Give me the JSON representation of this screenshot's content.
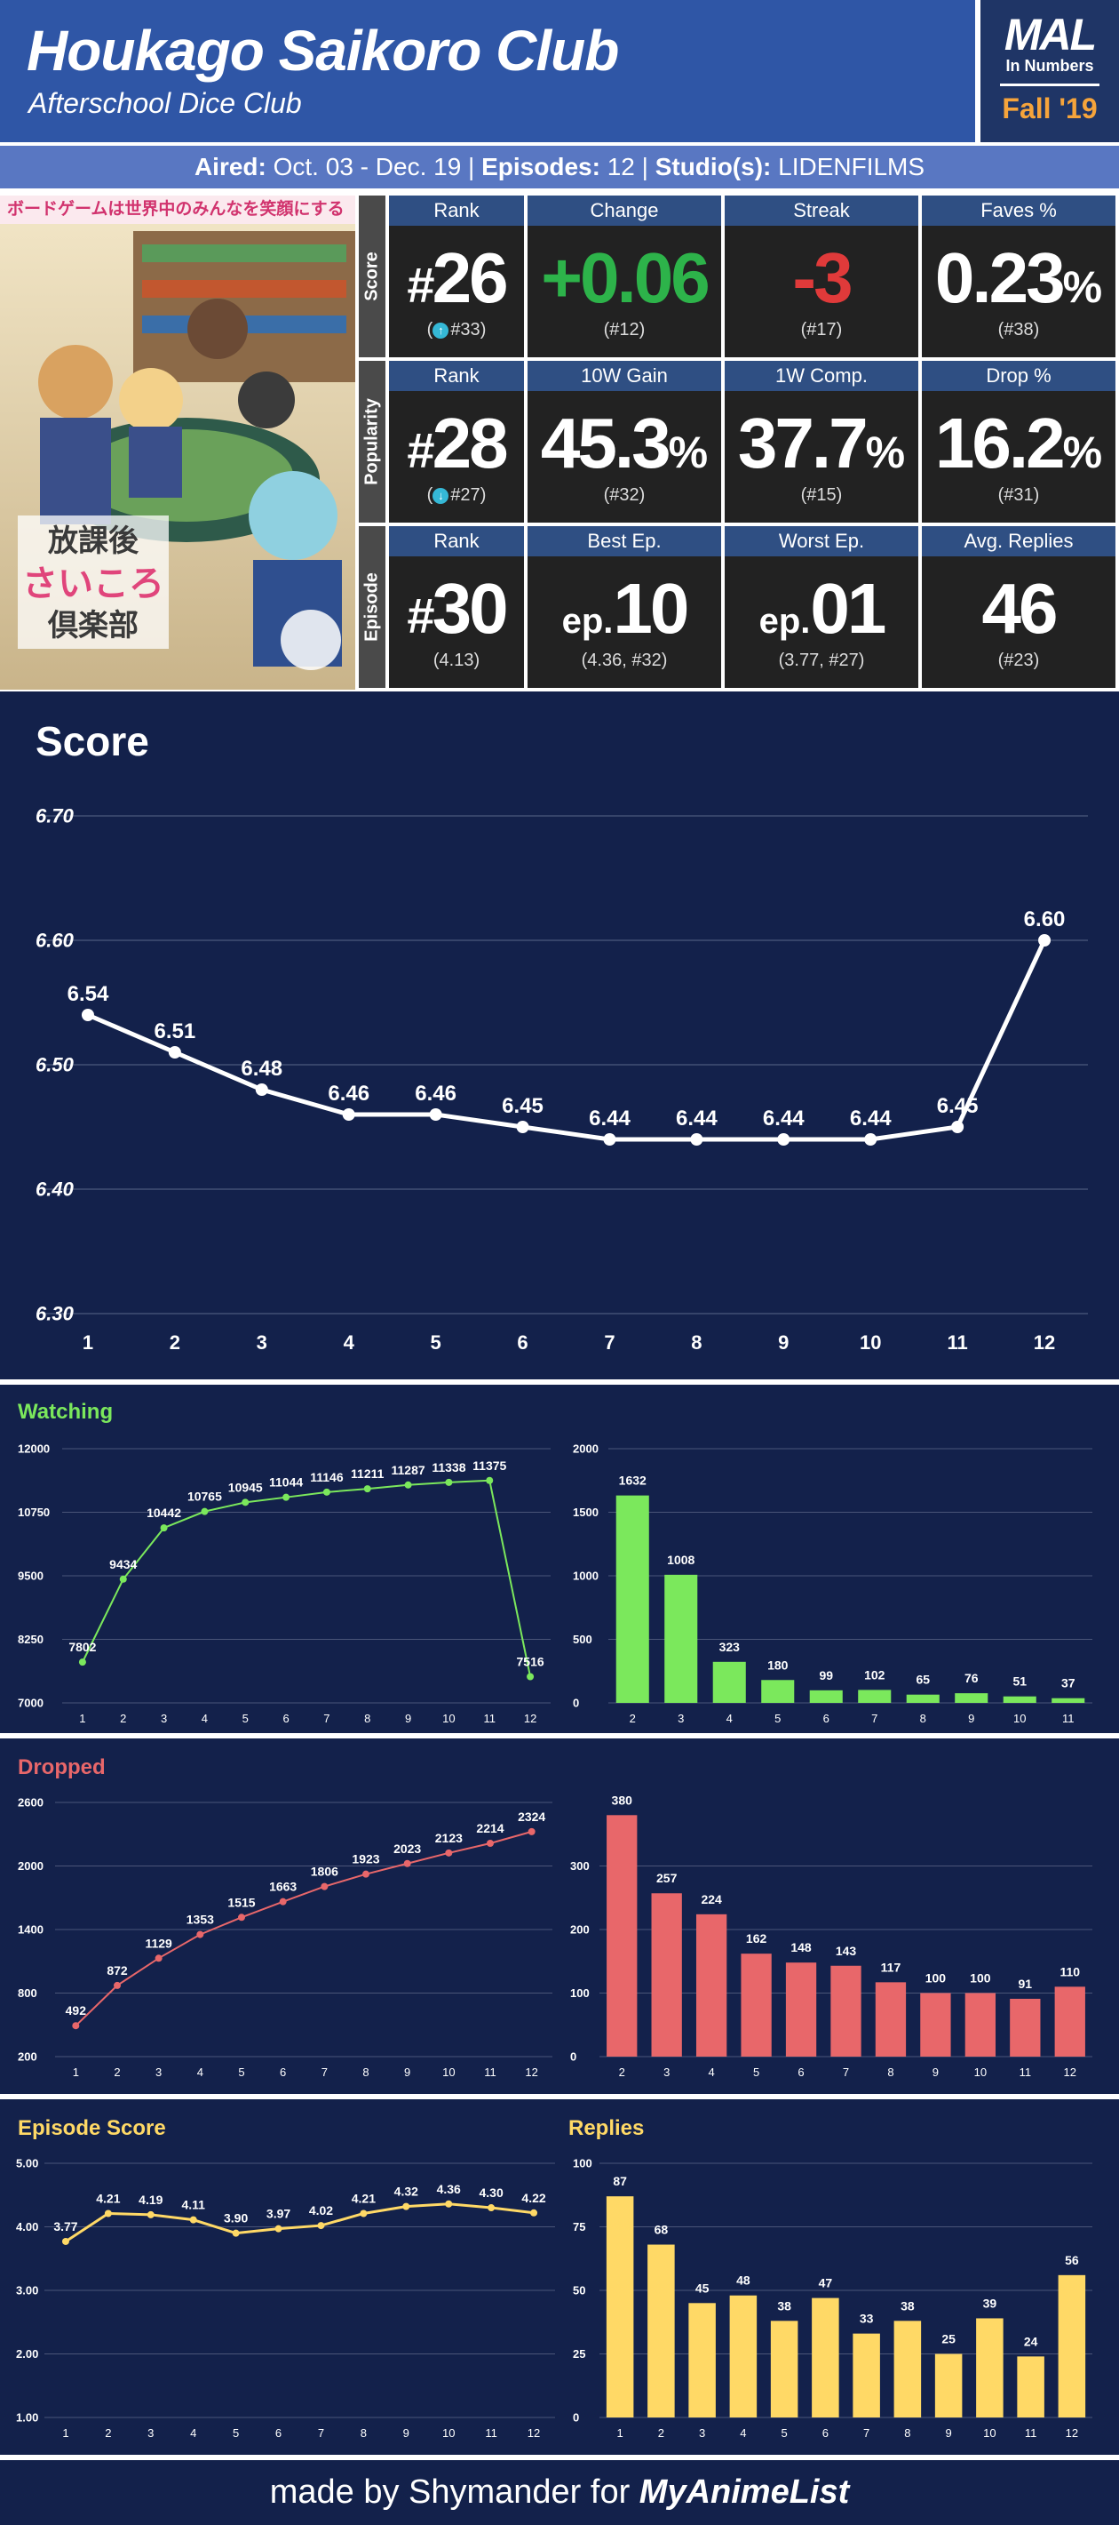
{
  "header": {
    "title": "Houkago Saikoro Club",
    "subtitle": "Afterschool Dice Club",
    "badge_title": "MAL",
    "badge_sub": "In Numbers",
    "badge_season": "Fall '19"
  },
  "info": {
    "aired_label": "Aired:",
    "aired_value": "Oct. 03 - Dec. 19",
    "episodes_label": "Episodes:",
    "episodes_value": "12",
    "studio_label": "Studio(s):",
    "studio_value": "LIDENFILMS",
    "sep": "|"
  },
  "poster": {
    "banner": "ボードゲームは世界中のみんなを笑顔にする"
  },
  "stats": {
    "score": {
      "label": "Score",
      "rank_head": "Rank",
      "rank_value": "26",
      "rank_sub": "#33",
      "change_head": "Change",
      "change_value": "+0.06",
      "change_sub": "(#12)",
      "streak_head": "Streak",
      "streak_value": "-3",
      "streak_sub": "(#17)",
      "faves_head": "Faves %",
      "faves_value": "0.23",
      "faves_sub": "(#38)"
    },
    "popularity": {
      "label": "Popularity",
      "rank_head": "Rank",
      "rank_value": "28",
      "rank_sub": "#27",
      "gain_head": "10W Gain",
      "gain_value": "45.3",
      "gain_sub": "(#32)",
      "comp_head": "1W Comp.",
      "comp_value": "37.7",
      "comp_sub": "(#15)",
      "drop_head": "Drop %",
      "drop_value": "16.2",
      "drop_sub": "(#31)"
    },
    "episode": {
      "label": "Episode",
      "rank_head": "Rank",
      "rank_value": "30",
      "rank_sub": "(4.13)",
      "best_head": "Best Ep.",
      "best_value": "10",
      "best_sub": "(4.36, #32)",
      "worst_head": "Worst Ep.",
      "worst_value": "01",
      "worst_sub": "(3.77, #27)",
      "replies_head": "Avg. Replies",
      "replies_value": "46",
      "replies_sub": "(#23)"
    },
    "symbols": {
      "hash": "#",
      "percent": "%",
      "ep": "ep."
    }
  },
  "colors": {
    "header_bg": "#2f56a6",
    "panel_bg": "#13214b",
    "score_line": "#ffffff",
    "watching": "#7be85c",
    "dropped": "#e8676a",
    "episode_score": "#ffd966",
    "replies": "#ffd966",
    "positive": "#2db34a",
    "negative": "#e03a3a"
  },
  "footer": {
    "text": "made by Shymander for",
    "brand": "MyAnimeList"
  },
  "chart_data": [
    {
      "id": "score",
      "type": "line",
      "title": "Score",
      "x": [
        1,
        2,
        3,
        4,
        5,
        6,
        7,
        8,
        9,
        10,
        11,
        12
      ],
      "values": [
        6.54,
        6.51,
        6.48,
        6.46,
        6.46,
        6.45,
        6.44,
        6.44,
        6.44,
        6.44,
        6.45,
        6.6
      ],
      "labels": [
        "6.54",
        "6.51",
        "6.48",
        "6.46",
        "6.46",
        "6.45",
        "6.44",
        "6.44",
        "6.44",
        "6.44",
        "6.45",
        "6.60"
      ],
      "ylim": [
        6.3,
        6.7
      ],
      "yticks": [
        "6.30",
        "6.40",
        "6.50",
        "6.60",
        "6.70"
      ],
      "grid": true
    },
    {
      "id": "watching",
      "type": "line",
      "title": "Watching",
      "x": [
        1,
        2,
        3,
        4,
        5,
        6,
        7,
        8,
        9,
        10,
        11,
        12
      ],
      "values": [
        7802,
        9434,
        10442,
        10765,
        10945,
        11044,
        11146,
        11211,
        11287,
        11338,
        11375,
        7516
      ],
      "ylim": [
        7000,
        12000
      ],
      "yticks": [
        "7000",
        "8250",
        "9500",
        "10750",
        "12000"
      ],
      "grid": true
    },
    {
      "id": "watching-change",
      "type": "bar",
      "categories": [
        2,
        3,
        4,
        5,
        6,
        7,
        8,
        9,
        10,
        11
      ],
      "values": [
        1632,
        1008,
        323,
        180,
        99,
        102,
        65,
        76,
        51,
        37
      ],
      "ylim": [
        0,
        2000
      ],
      "yticks": [
        "0",
        "500",
        "1000",
        "1500",
        "2000"
      ],
      "grid": true
    },
    {
      "id": "dropped",
      "type": "line",
      "title": "Dropped",
      "x": [
        1,
        2,
        3,
        4,
        5,
        6,
        7,
        8,
        9,
        10,
        11,
        12
      ],
      "values": [
        492,
        872,
        1129,
        1353,
        1515,
        1663,
        1806,
        1923,
        2023,
        2123,
        2214,
        2324
      ],
      "ylim": [
        200,
        2600
      ],
      "yticks": [
        "200",
        "800",
        "1400",
        "2000",
        "2600"
      ],
      "grid": true
    },
    {
      "id": "dropped-change",
      "type": "bar",
      "categories": [
        2,
        3,
        4,
        5,
        6,
        7,
        8,
        9,
        10,
        11,
        12
      ],
      "values": [
        380,
        257,
        224,
        162,
        148,
        143,
        117,
        100,
        100,
        91,
        110
      ],
      "ylim": [
        0,
        400
      ],
      "yticks": [
        "0",
        "100",
        "200",
        "300"
      ],
      "grid": true
    },
    {
      "id": "episode-score",
      "type": "line",
      "title": "Episode Score",
      "x": [
        1,
        2,
        3,
        4,
        5,
        6,
        7,
        8,
        9,
        10,
        11,
        12
      ],
      "values": [
        3.77,
        4.21,
        4.19,
        4.11,
        3.9,
        3.97,
        4.02,
        4.21,
        4.32,
        4.36,
        4.3,
        4.22
      ],
      "labels": [
        "3.77",
        "4.21",
        "4.19",
        "4.11",
        "3.90",
        "3.97",
        "4.02",
        "4.21",
        "4.32",
        "4.36",
        "4.30",
        "4.22"
      ],
      "ylim": [
        1.0,
        5.0
      ],
      "yticks": [
        "1.00",
        "2.00",
        "3.00",
        "4.00",
        "5.00"
      ],
      "grid": true
    },
    {
      "id": "replies",
      "type": "bar",
      "title": "Replies",
      "categories": [
        1,
        2,
        3,
        4,
        5,
        6,
        7,
        8,
        9,
        10,
        11,
        12
      ],
      "values": [
        87,
        68,
        45,
        48,
        38,
        47,
        33,
        38,
        25,
        39,
        24,
        56
      ],
      "ylim": [
        0,
        100
      ],
      "yticks": [
        "0",
        "25",
        "50",
        "75",
        "100"
      ],
      "grid": true
    }
  ]
}
